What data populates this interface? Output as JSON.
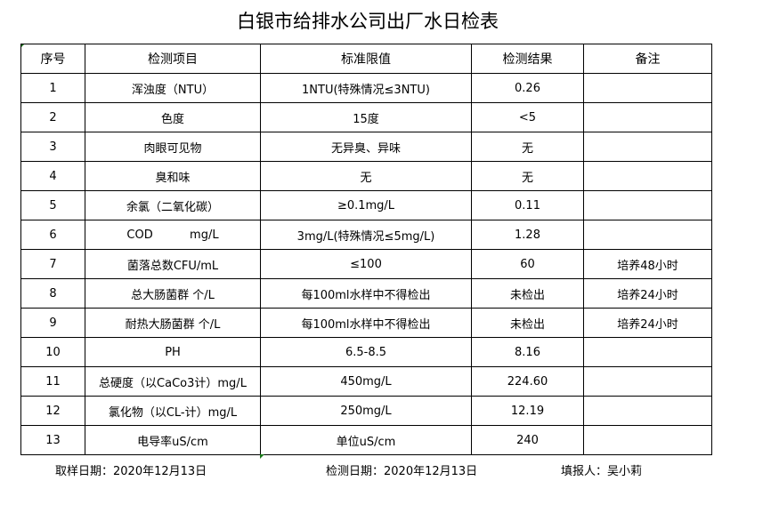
{
  "title": "白银市给排水公司出厂水日检表",
  "headers": [
    "序号",
    "检测项目",
    "标准限值",
    "检测结果",
    "备注"
  ],
  "rows": [
    [
      "1",
      "浑浊度（NTU）",
      "1NTU(特殊情况≤3NTU)",
      "0.26",
      ""
    ],
    [
      "2",
      "色度",
      "15度",
      "<5",
      ""
    ],
    [
      "3",
      "肉眼可见物",
      "无异臭、异味",
      "无",
      ""
    ],
    [
      "4",
      "臭和味",
      "无",
      "无",
      ""
    ],
    [
      "5",
      "余氯（二氧化碳）",
      "≥0.1mg/L",
      "0.11",
      ""
    ],
    [
      "6",
      "COD          mg/L",
      "3mg/L(特殊情况≤5mg/L)",
      "1.28",
      ""
    ],
    [
      "7",
      "菌落总数CFU/mL",
      "≤100",
      "60",
      "培养48小时"
    ],
    [
      "8",
      "总大肠菌群 个/L",
      "每100ml水样中不得检出",
      "未检出",
      "培养24小时"
    ],
    [
      "9",
      "耐热大肠菌群 个/L",
      "每100ml水样中不得检出",
      "未检出",
      "培养24小时"
    ],
    [
      "10",
      "PH",
      "6.5-8.5",
      "8.16",
      ""
    ],
    [
      "11",
      "总硬度（以CaCo3计）mg/L",
      "450mg/L",
      "224.60",
      ""
    ],
    [
      "12",
      "氯化物（以CL-计）mg/L",
      "250mg/L",
      "12.19",
      ""
    ],
    [
      "13",
      "电导率uS/cm",
      "单位uS/cm",
      "240",
      ""
    ]
  ],
  "footer": {
    "sampling_date": "取样日期：2020年12月13日",
    "test_date": "检测日期：2020年12月13日",
    "reporter": "填报人：吴小莉"
  }
}
